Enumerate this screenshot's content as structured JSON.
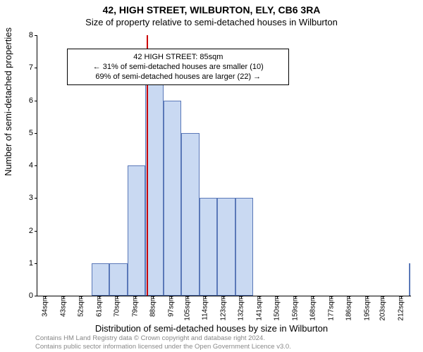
{
  "chart": {
    "type": "histogram",
    "title_main": "42, HIGH STREET, WILBURTON, ELY, CB6 3RA",
    "title_sub": "Size of property relative to semi-detached houses in Wilburton",
    "title_fontsize": 14,
    "ylabel": "Number of semi-detached properties",
    "xlabel": "Distribution of semi-detached houses by size in Wilburton",
    "label_fontsize": 13,
    "background_color": "#ffffff",
    "bar_fill": "#c9d9f2",
    "bar_stroke": "#5a78b8",
    "marker_color": "#cc0000",
    "ylim": [
      0,
      8
    ],
    "ytick_step": 1,
    "xticks": [
      "34sqm",
      "43sqm",
      "52sqm",
      "61sqm",
      "70sqm",
      "79sqm",
      "88sqm",
      "97sqm",
      "105sqm",
      "114sqm",
      "123sqm",
      "132sqm",
      "141sqm",
      "150sqm",
      "159sqm",
      "168sqm",
      "177sqm",
      "186sqm",
      "195sqm",
      "203sqm",
      "212sqm"
    ],
    "bars": {
      "edges_sqm": [
        30,
        39,
        48,
        57,
        66,
        75,
        84,
        93,
        102,
        111,
        120,
        129,
        138,
        216
      ],
      "heights": [
        0,
        0,
        0,
        1,
        1,
        4,
        7,
        6,
        5,
        3,
        3,
        3,
        0,
        1
      ]
    },
    "marker_x_sqm": 85,
    "infobox": {
      "line1": "42 HIGH STREET: 85sqm",
      "line2": "← 31% of semi-detached houses are smaller (10)",
      "line3": "69% of semi-detached houses are larger (22) →",
      "left_pct": 8,
      "top_pct": 5,
      "width_pct": 56
    },
    "footnote_1": "Contains HM Land Registry data © Crown copyright and database right 2024.",
    "footnote_2": "Contains public sector information licensed under the Open Government Licence v3.0.",
    "plot_x_min": 30,
    "plot_x_max": 217
  }
}
